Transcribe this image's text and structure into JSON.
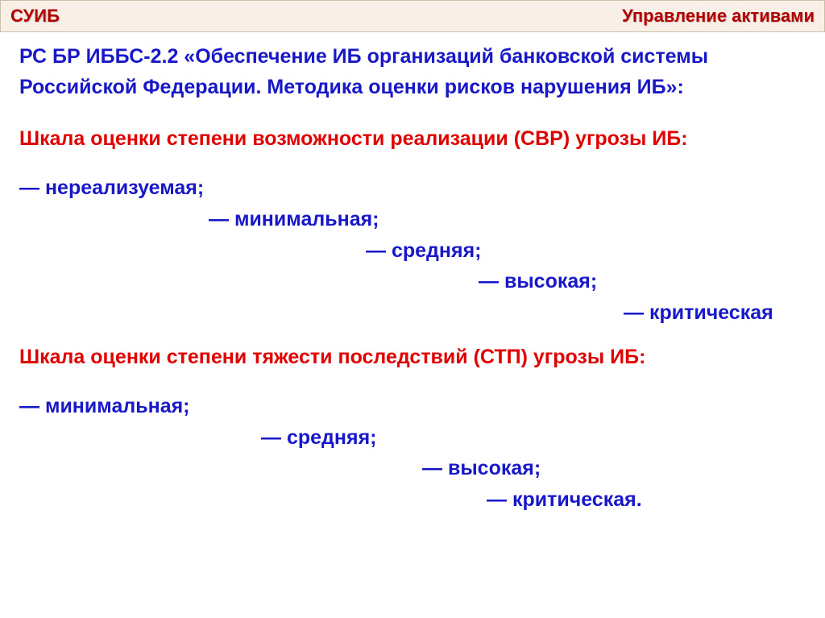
{
  "colors": {
    "header_bg": "#f8f0e6",
    "header_border": "#c8c0a8",
    "red": "#e00000",
    "darkred": "#b00000",
    "blue": "#1818c8"
  },
  "fontsizes": {
    "header": 22,
    "title": 25,
    "subheading": 25,
    "item": 25
  },
  "header": {
    "left": "СУИБ",
    "right": "Управление активами"
  },
  "title": "РС БР ИББС-2.2 «Обеспечение ИБ организаций банковской системы Российской Федерации. Методика оценки рисков нарушения ИБ»:",
  "scale1": {
    "heading": "Шкала оценки степени возможности реализации  (СВР) угрозы ИБ:",
    "items": [
      {
        "text": "—   нереализуемая;",
        "indent": 0
      },
      {
        "text": "—   минимальная;",
        "indent": 235
      },
      {
        "text": "—   средняя;",
        "indent": 430
      },
      {
        "text": "—   высокая;",
        "indent": 570
      },
      {
        "text": "—   критическая",
        "indent": 750
      }
    ]
  },
  "scale2": {
    "heading": "Шкала оценки степени тяжести последствий  (СТП) угрозы ИБ:",
    "items": [
      {
        "text": "—   минимальная;",
        "indent": 0
      },
      {
        "text": "—   средняя;",
        "indent": 300
      },
      {
        "text": "—   высокая;",
        "indent": 500
      },
      {
        "text": "—   критическая.",
        "indent": 580
      }
    ]
  }
}
